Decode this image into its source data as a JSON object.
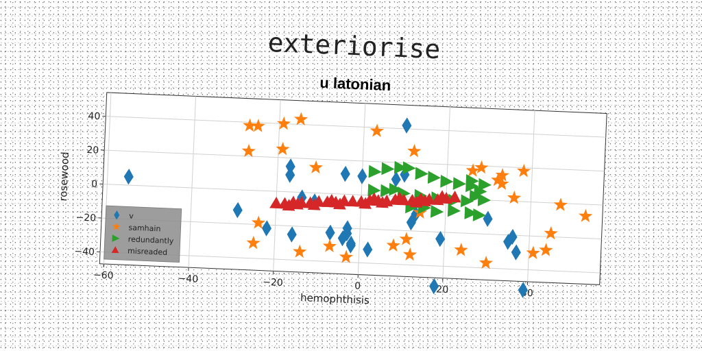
{
  "chart_data": {
    "type": "scatter",
    "title": "exteriorise",
    "subtitle": "u latonian",
    "xlabel": "hemophthisis",
    "ylabel": "rosewood",
    "xlim": [
      -61,
      57
    ],
    "ylim": [
      -47,
      54
    ],
    "xticks": [
      -60,
      -40,
      -20,
      0,
      20,
      40
    ],
    "yticks": [
      -40,
      -20,
      0,
      20,
      40
    ],
    "grid": true,
    "legend_position": "lower-left",
    "series": [
      {
        "name": "v",
        "marker": "diamond",
        "color": "#1f77b4",
        "points": [
          [
            -55,
            5
          ],
          [
            -29,
            -12
          ],
          [
            -22,
            -22
          ],
          [
            -17,
            15
          ],
          [
            -17,
            10
          ],
          [
            -16,
            -25
          ],
          [
            -14,
            -3
          ],
          [
            -11,
            -5
          ],
          [
            -7,
            -23
          ],
          [
            -4,
            12
          ],
          [
            -4,
            -26
          ],
          [
            -3,
            -20
          ],
          [
            -3,
            -23
          ],
          [
            -2,
            -29
          ],
          [
            -2,
            -30
          ],
          [
            0,
            11
          ],
          [
            2,
            -32
          ],
          [
            8,
            10
          ],
          [
            10,
            42
          ],
          [
            10,
            13
          ],
          [
            12,
            -15
          ],
          [
            13,
            -10
          ],
          [
            18,
            -52
          ],
          [
            19,
            -24
          ],
          [
            30,
            -11
          ],
          [
            35,
            -24
          ],
          [
            36,
            -21
          ],
          [
            37,
            -30
          ],
          [
            39,
            -52
          ]
        ]
      },
      {
        "name": "samhain",
        "marker": "star",
        "color": "#ff7f0e",
        "points": [
          [
            -27,
            38
          ],
          [
            -25,
            38
          ],
          [
            -27,
            23
          ],
          [
            -19,
            40
          ],
          [
            -19,
            25
          ],
          [
            -15,
            43
          ],
          [
            -11,
            15
          ],
          [
            -24,
            -19
          ],
          [
            -25,
            -31
          ],
          [
            -14,
            -35
          ],
          [
            -7,
            -31
          ],
          [
            -3,
            -37
          ],
          [
            3,
            38
          ],
          [
            8,
            -29
          ],
          [
            11,
            -25
          ],
          [
            12,
            -34
          ],
          [
            12,
            27
          ],
          [
            14,
            -9
          ],
          [
            24,
            -30
          ],
          [
            26,
            17
          ],
          [
            28,
            19
          ],
          [
            32,
            12
          ],
          [
            33,
            15
          ],
          [
            33,
            10
          ],
          [
            36,
            2
          ],
          [
            38,
            18
          ],
          [
            30,
            -37
          ],
          [
            41,
            -30
          ],
          [
            45,
            -18
          ],
          [
            44,
            -28
          ],
          [
            47,
            -1
          ],
          [
            53,
            -7
          ]
        ]
      },
      {
        "name": "redundantly",
        "marker": "triangle-right",
        "color": "#2ca02c",
        "points": [
          [
            3,
            14
          ],
          [
            6,
            16
          ],
          [
            9,
            17
          ],
          [
            11,
            17
          ],
          [
            14,
            14
          ],
          [
            17,
            12
          ],
          [
            20,
            10
          ],
          [
            23,
            9
          ],
          [
            26,
            8
          ],
          [
            29,
            9
          ],
          [
            3,
            3
          ],
          [
            6,
            3
          ],
          [
            10,
            2
          ],
          [
            14,
            1
          ],
          [
            18,
            0
          ],
          [
            22,
            -1
          ],
          [
            25,
            -1
          ],
          [
            27,
            2
          ],
          [
            28,
            5
          ],
          [
            26,
            11
          ],
          [
            22,
            -7
          ],
          [
            26,
            -8
          ],
          [
            28,
            -9
          ],
          [
            15,
            -6
          ],
          [
            18,
            -8
          ],
          [
            12,
            -6
          ],
          [
            8,
            4
          ],
          [
            29,
            0
          ]
        ]
      },
      {
        "name": "misreaded",
        "marker": "triangle-up",
        "color": "#d62728",
        "points": [
          [
            -20,
            -7
          ],
          [
            -18,
            -7
          ],
          [
            -16,
            -6
          ],
          [
            -14,
            -6
          ],
          [
            -12,
            -6
          ],
          [
            -10,
            -5
          ],
          [
            -8,
            -5
          ],
          [
            -6,
            -5
          ],
          [
            -4,
            -4
          ],
          [
            -2,
            -4
          ],
          [
            0,
            -4
          ],
          [
            2,
            -3
          ],
          [
            4,
            -3
          ],
          [
            6,
            -3
          ],
          [
            8,
            -2
          ],
          [
            10,
            -2
          ],
          [
            12,
            -2
          ],
          [
            14,
            -1
          ],
          [
            16,
            -1
          ],
          [
            18,
            -1
          ],
          [
            20,
            0
          ],
          [
            22,
            1
          ],
          [
            -15,
            -7
          ],
          [
            -5,
            -6
          ],
          [
            5,
            -4
          ],
          [
            15,
            -2
          ],
          [
            -17,
            -8
          ],
          [
            -11,
            -7
          ],
          [
            1,
            -5
          ],
          [
            13,
            -3
          ],
          [
            19,
            1
          ],
          [
            9,
            -1
          ],
          [
            -7,
            -4
          ],
          [
            3,
            -2
          ]
        ]
      }
    ]
  }
}
